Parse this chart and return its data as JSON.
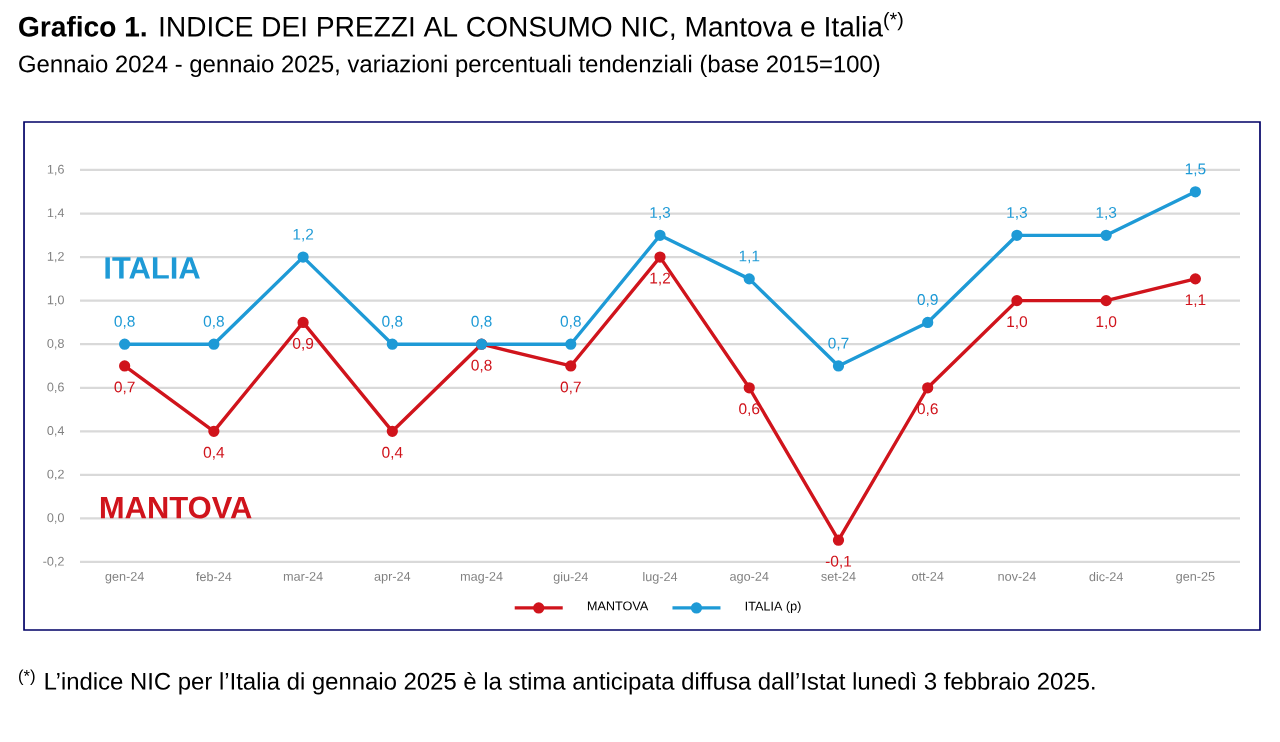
{
  "chart_data": {
    "type": "line",
    "title": "**Grafico 1.** INDICE DEI PREZZI AL CONSUMO NIC, Mantova e Italia$^{(*)}$",
    "subtitle": "Gennaio 2024 - gennaio 2025, variazioni percentuali tendenziali (base 2015=100)",
    "categories": [
      "gen-24",
      "feb-24",
      "mar-24",
      "apr-24",
      "mag-24",
      "giu-24",
      "lug-24",
      "ago-24",
      "set-24",
      "ott-24",
      "nov-24",
      "dic-24",
      "gen-25"
    ],
    "series": [
      {
        "name": "MANTOVA",
        "color": "#d0141c",
        "values": [
          0.7,
          0.4,
          0.9,
          0.4,
          0.8,
          0.7,
          1.2,
          0.6,
          -0.1,
          0.6,
          1.0,
          1.0,
          1.1
        ],
        "value_labels": [
          "0,7",
          "0,4",
          "0,9",
          "0,4",
          "0,8",
          "0,7",
          "1,2",
          "0,6",
          "-0,1",
          "0,6",
          "1,0",
          "1,0",
          "1,1"
        ]
      },
      {
        "name": "ITALIA (p)",
        "color": "#1e9ad6",
        "values": [
          0.8,
          0.8,
          1.2,
          0.8,
          0.8,
          0.8,
          1.3,
          1.1,
          0.7,
          0.9,
          1.3,
          1.3,
          1.5
        ],
        "value_labels": [
          "0,8",
          "0,8",
          "1,2",
          "0,8",
          "0,8",
          "0,8",
          "1,3",
          "1,1",
          "0,7",
          "0,9",
          "1,3",
          "1,3",
          "1,5"
        ]
      }
    ],
    "ylim": [
      -0.2,
      1.6
    ],
    "yticks": [
      {
        "value": -0.2,
        "label": "-0,2"
      },
      {
        "value": 0,
        "label": "0,0"
      },
      {
        "value": 0.2,
        "label": "0,2"
      },
      {
        "value": 0.4,
        "label": "0,4"
      },
      {
        "value": 0.6,
        "label": "0,6"
      },
      {
        "value": 0.8,
        "label": "0,8"
      },
      {
        "value": 1.0,
        "label": "1,0"
      },
      {
        "value": 1.2,
        "label": "1,2"
      },
      {
        "value": 1.4,
        "label": "1,4"
      },
      {
        "value": 1.6,
        "label": "1,6"
      }
    ],
    "annotations": [
      "ITALIA",
      "MANTOVA",
      "$^{(*)}$ L’indice NIC per l’Italia di gennaio 2025 è la stima anticipata diffusa dall’Istat lunedì 3 febbraio 2025."
    ],
    "grid": "y",
    "legend": "bottom",
    "marker": "circle",
    "line_style": "solid"
  }
}
